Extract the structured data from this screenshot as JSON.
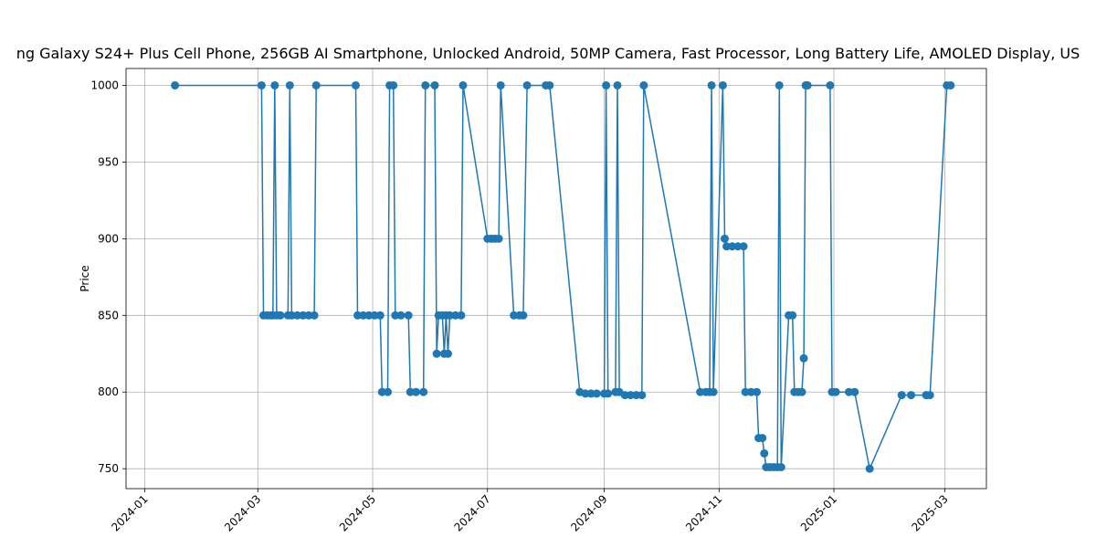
{
  "chart_data": {
    "type": "line",
    "title": "ng Galaxy S24+ Plus Cell Phone, 256GB AI Smartphone, Unlocked Android, 50MP Camera, Fast Processor, Long Battery Life, AMOLED Display, US",
    "y_label": "Price",
    "x": [
      "2024-01-17",
      "2024-03-03",
      "2024-03-04",
      "2024-03-06",
      "2024-03-08",
      "2024-03-09",
      "2024-03-10",
      "2024-03-11",
      "2024-03-13",
      "2024-03-17",
      "2024-03-18",
      "2024-03-19",
      "2024-03-22",
      "2024-03-25",
      "2024-03-28",
      "2024-03-31",
      "2024-04-01",
      "2024-04-22",
      "2024-04-23",
      "2024-04-26",
      "2024-04-29",
      "2024-05-02",
      "2024-05-05",
      "2024-05-06",
      "2024-05-09",
      "2024-05-10",
      "2024-05-12",
      "2024-05-13",
      "2024-05-16",
      "2024-05-20",
      "2024-05-21",
      "2024-05-24",
      "2024-05-28",
      "2024-05-29",
      "2024-06-03",
      "2024-06-04",
      "2024-06-05",
      "2024-06-07",
      "2024-06-08",
      "2024-06-09",
      "2024-06-10",
      "2024-06-11",
      "2024-06-14",
      "2024-06-17",
      "2024-06-18",
      "2024-07-01",
      "2024-07-03",
      "2024-07-05",
      "2024-07-07",
      "2024-07-08",
      "2024-07-15",
      "2024-07-18",
      "2024-07-20",
      "2024-07-22",
      "2024-08-01",
      "2024-08-03",
      "2024-08-19",
      "2024-08-22",
      "2024-08-25",
      "2024-08-28",
      "2024-09-01",
      "2024-09-02",
      "2024-09-03",
      "2024-09-07",
      "2024-09-08",
      "2024-09-09",
      "2024-09-12",
      "2024-09-15",
      "2024-09-18",
      "2024-09-21",
      "2024-09-22",
      "2024-10-22",
      "2024-10-25",
      "2024-10-27",
      "2024-10-28",
      "2024-10-29",
      "2024-11-03",
      "2024-11-04",
      "2024-11-05",
      "2024-11-08",
      "2024-11-11",
      "2024-11-14",
      "2024-11-15",
      "2024-11-18",
      "2024-11-21",
      "2024-11-22",
      "2024-11-24",
      "2024-11-25",
      "2024-11-26",
      "2024-11-28",
      "2024-11-30",
      "2024-12-02",
      "2024-12-03",
      "2024-12-04",
      "2024-12-08",
      "2024-12-10",
      "2024-12-11",
      "2024-12-13",
      "2024-12-15",
      "2024-12-16",
      "2024-12-17",
      "2024-12-18",
      "2024-12-30",
      "2024-12-31",
      "2025-01-02",
      "2025-01-09",
      "2025-01-12",
      "2025-01-20",
      "2025-02-06",
      "2025-02-11",
      "2025-02-19",
      "2025-02-21",
      "2025-03-02",
      "2025-03-04"
    ],
    "series": [
      {
        "name": "Price",
        "color": "#1f77b4",
        "values": [
          1000,
          1000,
          850,
          850,
          850,
          850,
          1000,
          850,
          850,
          850,
          1000,
          850,
          850,
          850,
          850,
          850,
          1000,
          1000,
          850,
          850,
          850,
          850,
          850,
          800,
          800,
          1000,
          1000,
          850,
          850,
          850,
          800,
          800,
          800,
          1000,
          1000,
          825,
          850,
          850,
          825,
          850,
          825,
          850,
          850,
          850,
          1000,
          900,
          900,
          900,
          900,
          1000,
          850,
          850,
          850,
          1000,
          1000,
          1000,
          800,
          799,
          799,
          799,
          799,
          1000,
          799,
          800,
          1000,
          800,
          798,
          798,
          798,
          798,
          1000,
          800,
          800,
          800,
          1000,
          800,
          1000,
          900,
          895,
          895,
          895,
          895,
          800,
          800,
          800,
          770,
          770,
          760,
          751,
          751,
          751,
          751,
          1000,
          751,
          850,
          850,
          800,
          800,
          800,
          822,
          1000,
          1000,
          1000,
          800,
          800,
          800,
          800,
          750,
          798,
          798,
          798,
          798,
          1000,
          1000
        ]
      }
    ],
    "xlim": [
      "2023-12-22",
      "2025-03-23"
    ],
    "ylim": [
      737,
      1011
    ],
    "xticks": [
      {
        "value": "2024-01-01",
        "label": "2024-01"
      },
      {
        "value": "2024-03-01",
        "label": "2024-03"
      },
      {
        "value": "2024-05-01",
        "label": "2024-05"
      },
      {
        "value": "2024-07-01",
        "label": "2024-07"
      },
      {
        "value": "2024-09-01",
        "label": "2024-09"
      },
      {
        "value": "2024-11-01",
        "label": "2024-11"
      },
      {
        "value": "2025-01-01",
        "label": "2025-01"
      },
      {
        "value": "2025-03-01",
        "label": "2025-03"
      }
    ],
    "yticks": [
      750,
      800,
      850,
      900,
      950,
      1000
    ],
    "grid": true
  }
}
